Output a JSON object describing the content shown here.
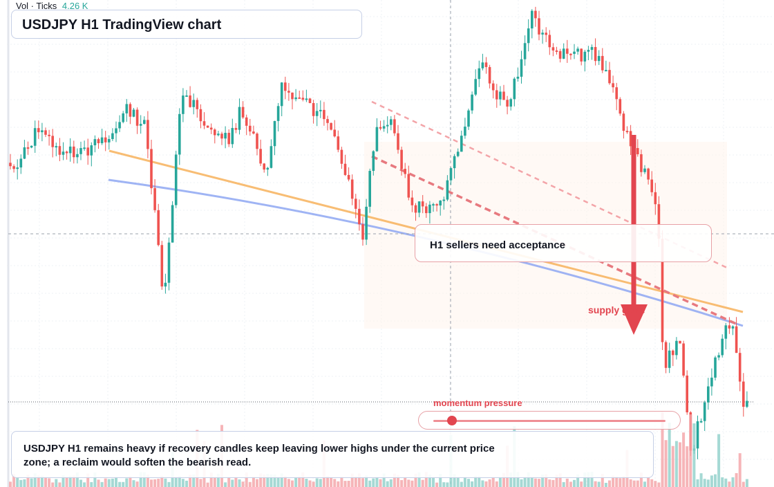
{
  "chart_data": {
    "type": "candlestick",
    "title": "USDJPY H1 TradingView chart",
    "symbol": "USDJPY",
    "timeframe": "H1",
    "grid": true,
    "y_axis": "hidden",
    "colors": {
      "up": "#26a69a",
      "down": "#ef5350",
      "up_volume": "#8fd0c9",
      "down_volume": "#f4a3a6",
      "accent_red": "#e2454f",
      "trend_orange": "#f7b25c",
      "trend_blue": "#8ea7f2"
    },
    "volume_legend": {
      "label": "Vol · Ticks",
      "value": "4.26 K"
    },
    "annotations": {
      "callout": "H1 sellers need acceptance",
      "zone_label": "supply gone",
      "momentum_label": "momentum pressure",
      "momentum_value": 0.08,
      "summary": "USDJPY H1 remains heavy if recovery candles keep leaving lower highs under the current price zone; a reclaim would soften the bearish read."
    }
  }
}
